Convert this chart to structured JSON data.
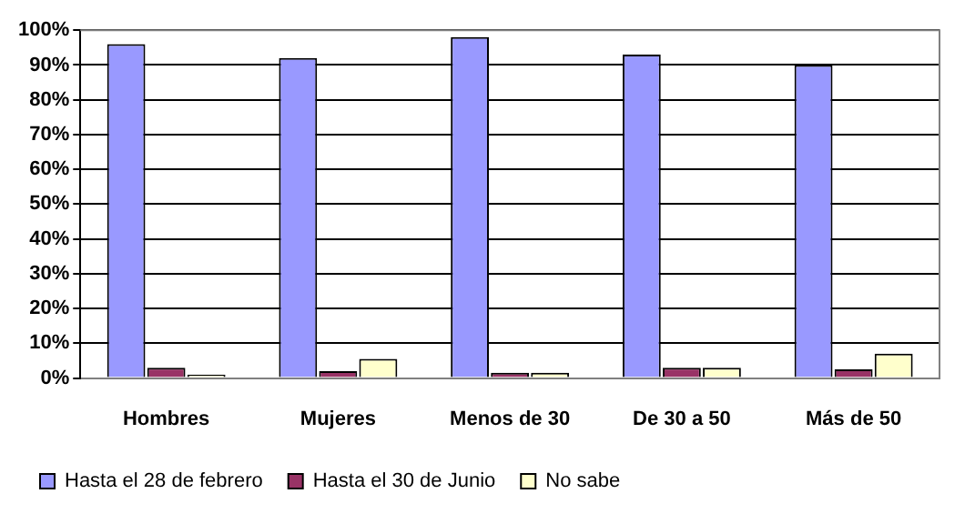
{
  "chart_data": {
    "type": "bar",
    "categories": [
      "Hombres",
      "Mujeres",
      "Menos de 30",
      "De 30 a 50",
      "Más de 50"
    ],
    "series": [
      {
        "name": "Hasta el 28 de febrero",
        "color": "#9999ff",
        "values": [
          96,
          92,
          98,
          93,
          90
        ]
      },
      {
        "name": "Hasta el 30 de Junio",
        "color": "#993366",
        "values": [
          3,
          2,
          1.5,
          3,
          2.5
        ]
      },
      {
        "name": "No sabe",
        "color": "#ffffcc",
        "values": [
          1,
          5.5,
          1.5,
          3,
          7
        ]
      }
    ],
    "ylim": [
      0,
      100
    ],
    "yticks": [
      {
        "value": 0,
        "label": "0%"
      },
      {
        "value": 10,
        "label": "10%"
      },
      {
        "value": 20,
        "label": "20%"
      },
      {
        "value": 30,
        "label": "30%"
      },
      {
        "value": 40,
        "label": "40%"
      },
      {
        "value": 50,
        "label": "50%"
      },
      {
        "value": 60,
        "label": "60%"
      },
      {
        "value": 70,
        "label": "70%"
      },
      {
        "value": 80,
        "label": "80%"
      },
      {
        "value": 90,
        "label": "90%"
      },
      {
        "value": 100,
        "label": "100%"
      }
    ],
    "grid": "y",
    "legend": "bottom"
  }
}
